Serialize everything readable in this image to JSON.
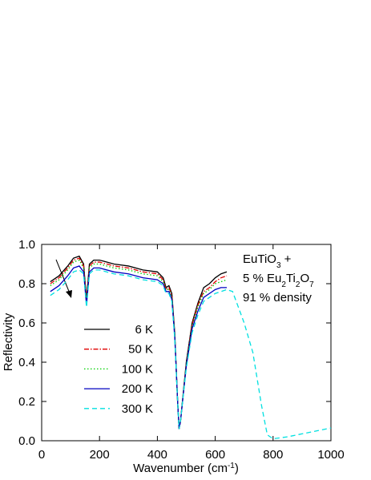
{
  "chart_data": {
    "type": "line",
    "xlabel": [
      "Wavenumber (cm",
      "-1",
      ")"
    ],
    "ylabel": "Reflectivity",
    "annotation": [
      [
        "EuTiO",
        "3",
        " +"
      ],
      [
        "5 % Eu",
        "2",
        "Ti",
        "2",
        "O",
        "7"
      ],
      [
        "91 % density"
      ]
    ],
    "x": [
      30,
      60,
      90,
      110,
      130,
      145,
      155,
      165,
      180,
      200,
      250,
      300,
      350,
      400,
      420,
      430,
      440,
      450,
      460,
      470,
      475,
      480,
      490,
      500,
      520,
      540,
      560,
      580,
      600,
      620,
      640,
      660,
      700,
      730,
      760,
      780,
      800,
      850,
      900,
      950,
      1000
    ],
    "series": [
      {
        "name": "6 K",
        "color": "#000000",
        "dash": "solid",
        "values": [
          0.81,
          0.84,
          0.89,
          0.93,
          0.94,
          0.9,
          0.72,
          0.9,
          0.92,
          0.92,
          0.9,
          0.89,
          0.87,
          0.86,
          0.83,
          0.78,
          0.79,
          0.75,
          0.55,
          0.2,
          0.06,
          0.1,
          0.25,
          0.4,
          0.6,
          0.7,
          0.78,
          0.8,
          0.83,
          0.85,
          0.86,
          null,
          null,
          null,
          null,
          null,
          null,
          null,
          null,
          null,
          null
        ]
      },
      {
        "name": "50 K",
        "color": "#e00000",
        "dash": "dashdot",
        "values": [
          0.8,
          0.83,
          0.88,
          0.92,
          0.93,
          0.89,
          0.71,
          0.89,
          0.91,
          0.91,
          0.89,
          0.88,
          0.86,
          0.85,
          0.82,
          0.77,
          0.78,
          0.74,
          0.54,
          0.2,
          0.06,
          0.1,
          0.25,
          0.39,
          0.59,
          0.69,
          0.76,
          0.78,
          0.81,
          0.83,
          0.84,
          null,
          null,
          null,
          null,
          null,
          null,
          null,
          null,
          null,
          null
        ]
      },
      {
        "name": "100 K",
        "color": "#00d000",
        "dash": "dotted",
        "values": [
          0.79,
          0.82,
          0.87,
          0.91,
          0.92,
          0.88,
          0.7,
          0.88,
          0.9,
          0.9,
          0.88,
          0.87,
          0.85,
          0.84,
          0.81,
          0.77,
          0.77,
          0.73,
          0.54,
          0.2,
          0.06,
          0.1,
          0.25,
          0.39,
          0.58,
          0.68,
          0.75,
          0.77,
          0.8,
          0.81,
          0.82,
          null,
          null,
          null,
          null,
          null,
          null,
          null,
          null,
          null,
          null
        ]
      },
      {
        "name": "200 K",
        "color": "#0000c0",
        "dash": "solid",
        "values": [
          0.76,
          0.79,
          0.84,
          0.88,
          0.89,
          0.86,
          0.69,
          0.86,
          0.88,
          0.88,
          0.86,
          0.85,
          0.83,
          0.82,
          0.8,
          0.76,
          0.76,
          0.72,
          0.53,
          0.2,
          0.06,
          0.1,
          0.24,
          0.38,
          0.57,
          0.66,
          0.73,
          0.75,
          0.77,
          0.78,
          0.78,
          null,
          null,
          null,
          null,
          null,
          null,
          null,
          null,
          null,
          null
        ]
      },
      {
        "name": "300 K",
        "color": "#00e0e0",
        "dash": "dashed",
        "values": [
          0.74,
          0.77,
          0.82,
          0.86,
          0.87,
          0.85,
          0.68,
          0.85,
          0.87,
          0.87,
          0.85,
          0.84,
          0.82,
          0.81,
          0.79,
          0.75,
          0.75,
          0.71,
          0.52,
          0.2,
          0.06,
          0.1,
          0.24,
          0.37,
          0.55,
          0.64,
          0.71,
          0.73,
          0.75,
          0.76,
          0.77,
          0.76,
          0.6,
          0.45,
          0.18,
          0.03,
          0.01,
          0.02,
          0.035,
          0.05,
          0.065
        ]
      }
    ],
    "xlim": [
      0,
      1000
    ],
    "xticks": [
      0,
      200,
      400,
      600,
      800,
      1000
    ],
    "ylim": [
      0,
      1
    ],
    "yticks": [
      {
        "value": 0,
        "label": "0.0"
      },
      0.2,
      0.4,
      0.6,
      0.8,
      {
        "value": 1,
        "label": "1.0"
      }
    ],
    "grid": false
  }
}
